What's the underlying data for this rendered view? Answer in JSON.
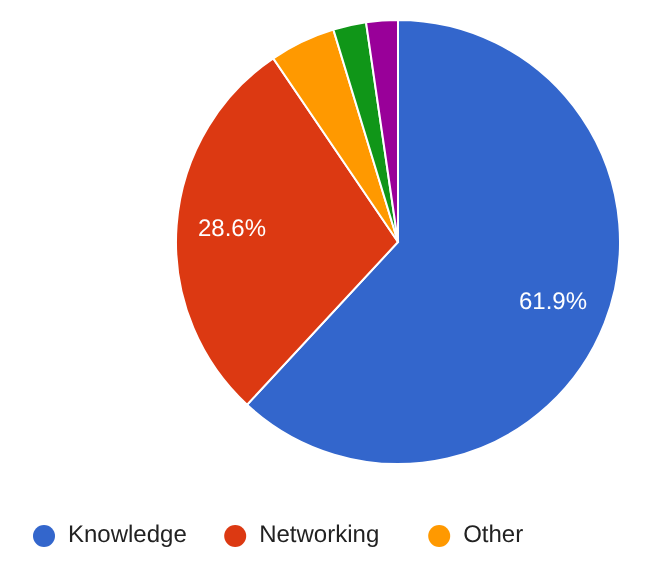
{
  "chart_data": {
    "type": "pie",
    "categories": [
      "Knowledge",
      "Networking",
      "Other",
      null,
      null
    ],
    "values": [
      61.9,
      28.6,
      4.8,
      2.4,
      2.3
    ],
    "colors": [
      "#3366cc",
      "#dc3912",
      "#ff9900",
      "#109618",
      "#990099"
    ],
    "value_labels": [
      "61.9%",
      "28.6%",
      null,
      null,
      null
    ],
    "legend": "bottom"
  }
}
